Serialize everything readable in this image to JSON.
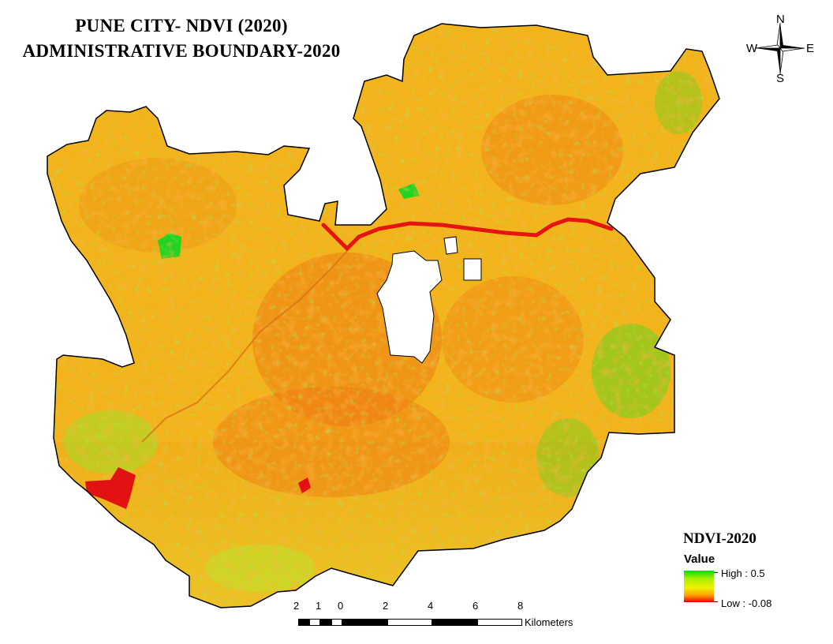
{
  "title": {
    "line1": "PUNE CITY- NDVI (2020)",
    "line2": "ADMINISTRATIVE BOUNDARY-2020"
  },
  "north_arrow": {
    "icon": "compass-rose-icon",
    "n": "N",
    "s": "S",
    "e": "E",
    "w": "W"
  },
  "legend": {
    "title": "NDVI-2020",
    "value_label": "Value",
    "high_label": "High : 0.5",
    "low_label": "Low : -0.08",
    "high_color": "#00e000",
    "mid_color": "#f0f000",
    "low_color": "#e80000"
  },
  "scale_bar": {
    "ticks": [
      "2",
      "1",
      "0",
      "2",
      "4",
      "6",
      "8"
    ],
    "unit": "Kilometers"
  },
  "map_colors": {
    "base": "#f2b41a",
    "urban": "#ef7a12",
    "vegetation": "#42dc20",
    "river": "#e51410",
    "water_body": "#e31212",
    "boundary": "#000000"
  }
}
